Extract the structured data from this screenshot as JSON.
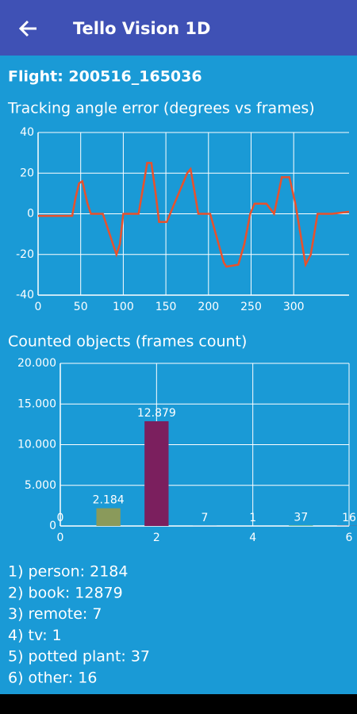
{
  "app_bar": {
    "title": "Tello Vision 1D"
  },
  "flight": "Flight: 200516_165036",
  "chart_data": [
    {
      "type": "line",
      "title": "Tracking angle error (degrees vs frames)",
      "x": [
        0,
        40,
        44,
        48,
        52,
        58,
        62,
        76,
        84,
        92,
        96,
        100,
        118,
        124,
        128,
        133,
        138,
        142,
        151,
        160,
        170,
        175,
        179,
        184,
        188,
        202,
        210,
        218,
        221,
        235,
        242,
        249,
        254,
        268,
        277,
        282,
        286,
        295,
        302,
        310,
        314,
        320,
        328,
        345,
        365
      ],
      "values": [
        -1,
        -1,
        8,
        15,
        16,
        5,
        0,
        0,
        -10,
        -20,
        -15,
        0,
        0,
        15,
        25,
        25,
        10,
        -4,
        -4,
        5,
        15,
        20,
        22,
        10,
        0,
        0,
        -12,
        -24,
        -26,
        -25,
        -15,
        0,
        5,
        5,
        0,
        10,
        18,
        18,
        5,
        -15,
        -25,
        -20,
        0,
        0,
        1
      ],
      "color": "#e8512c",
      "xlim": [
        0,
        365
      ],
      "xticks": [
        0,
        50,
        100,
        150,
        200,
        250,
        300
      ],
      "ylim": [
        -40,
        40
      ],
      "yticks": [
        -40,
        -20,
        0,
        20,
        40
      ],
      "grid": true
    },
    {
      "type": "bar",
      "title": "Counted objects (frames count)",
      "x": [
        0,
        1,
        2,
        3,
        4,
        5,
        6
      ],
      "values": [
        0,
        2184,
        12879,
        7,
        1,
        37,
        16
      ],
      "value_labels": [
        "0",
        "2.184",
        "12.879",
        "7",
        "1",
        "37",
        "16"
      ],
      "colors": [
        "#8a9a5b",
        "#8a9a5b",
        "#7b1f5e",
        "#1f77b4",
        "#e377c2",
        "#2ca02c",
        "#d62728"
      ],
      "xlim": [
        0,
        6
      ],
      "xticks": [
        0,
        2,
        4,
        6
      ],
      "ylim": [
        0,
        20000
      ],
      "yticks": [
        0,
        {
          "value": 5000,
          "label": "5.000"
        },
        {
          "value": 10000,
          "label": "10.000"
        },
        {
          "value": 15000,
          "label": "15.000"
        },
        {
          "value": 20000,
          "label": "20.000"
        }
      ],
      "grid": true
    }
  ],
  "list": [
    "1) person: 2184",
    "2) book: 12879",
    "3) remote: 7",
    "4) tv: 1",
    "5) potted plant: 37",
    "6) other: 16"
  ]
}
